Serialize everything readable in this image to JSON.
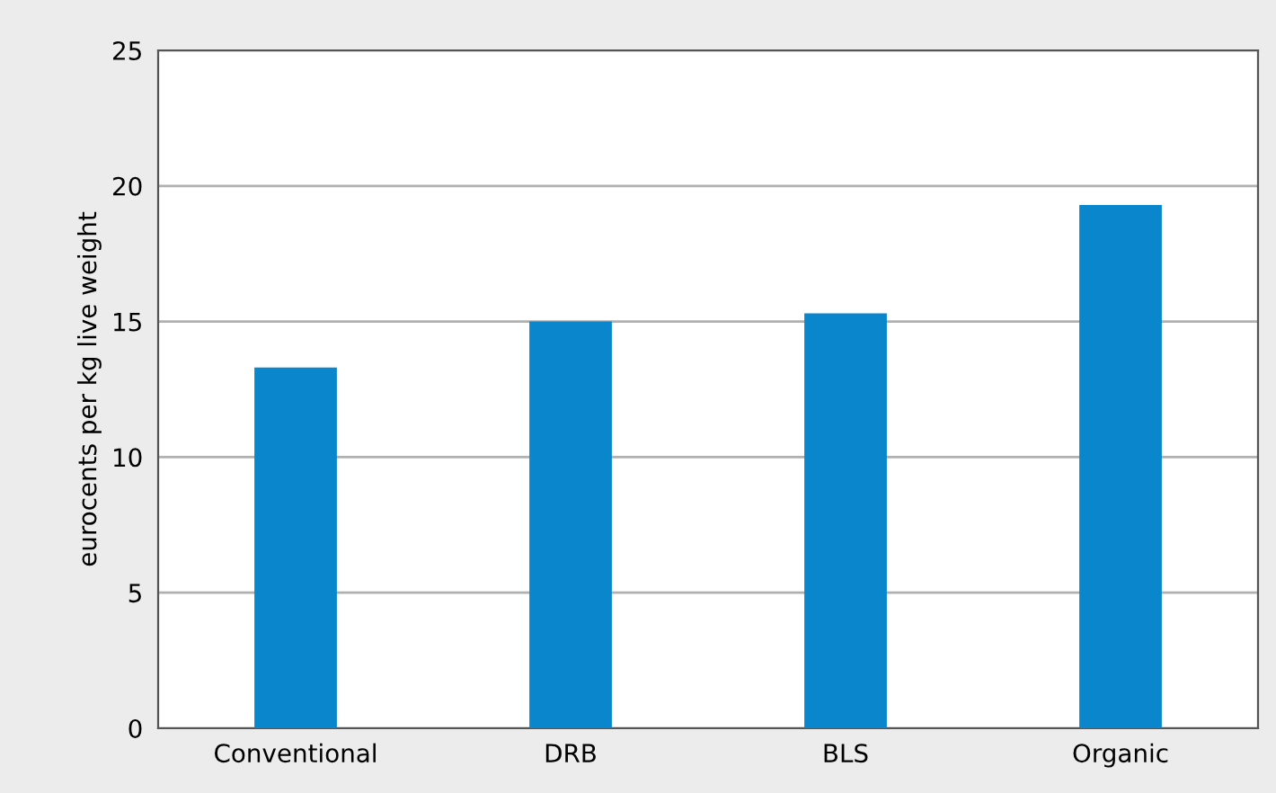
{
  "chart_data": {
    "type": "bar",
    "ylabel": "eurocents per kg live weight",
    "categories": [
      "Conventional",
      "DRB",
      "BLS",
      "Organic"
    ],
    "values": [
      13.3,
      15.0,
      15.3,
      19.3
    ],
    "color": "#0a87cc",
    "ylim": [
      0,
      25
    ],
    "yticks": [
      0,
      5,
      10,
      15,
      20,
      25
    ],
    "grid": "y"
  }
}
